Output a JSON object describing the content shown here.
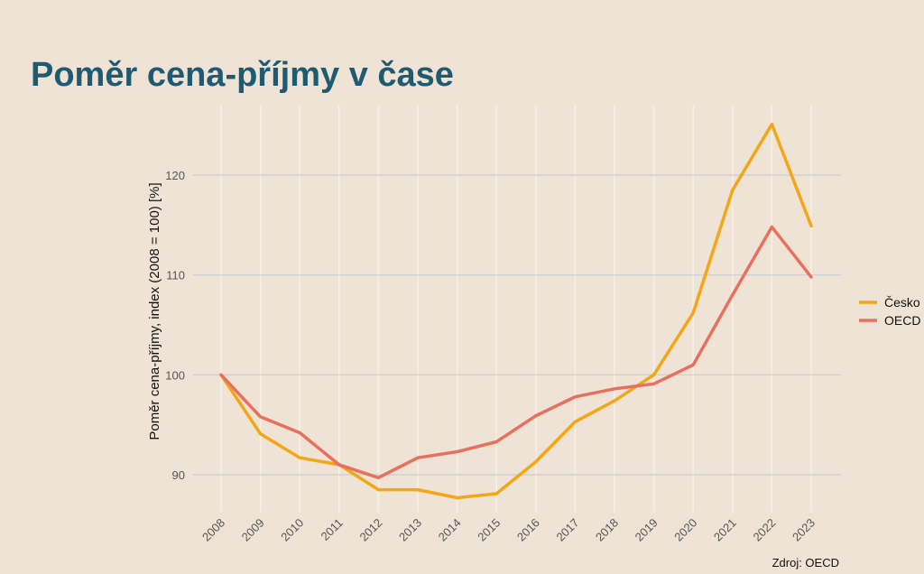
{
  "title": "Poměr cena-příjmy v čase",
  "chart_data": {
    "type": "line",
    "title": "Poměr cena-příjmy v čase",
    "xlabel": "",
    "ylabel": "Poměr cena-příjmy, index (2008 = 100) [%]",
    "x": [
      "2008",
      "2009",
      "2010",
      "2011",
      "2012",
      "2013",
      "2014",
      "2015",
      "2016",
      "2017",
      "2018",
      "2019",
      "2020",
      "2021",
      "2022",
      "2023"
    ],
    "ylim": [
      85.5,
      127
    ],
    "yticks": [
      90,
      100,
      110,
      120
    ],
    "grid": true,
    "legend_position": "right",
    "series": [
      {
        "name": "Česko",
        "color": "#f2a618",
        "values": [
          100,
          94.1,
          91.7,
          91.0,
          88.5,
          88.5,
          87.7,
          88.1,
          91.3,
          95.3,
          97.4,
          100.0,
          106.2,
          118.5,
          125.1,
          114.9
        ]
      },
      {
        "name": "OECD",
        "color": "#e8705f",
        "values": [
          100,
          95.8,
          94.2,
          91.0,
          89.7,
          91.7,
          92.3,
          93.3,
          95.9,
          97.8,
          98.6,
          99.1,
          101.0,
          108.0,
          114.8,
          109.8
        ]
      }
    ],
    "source": "Zdroj: OECD"
  }
}
